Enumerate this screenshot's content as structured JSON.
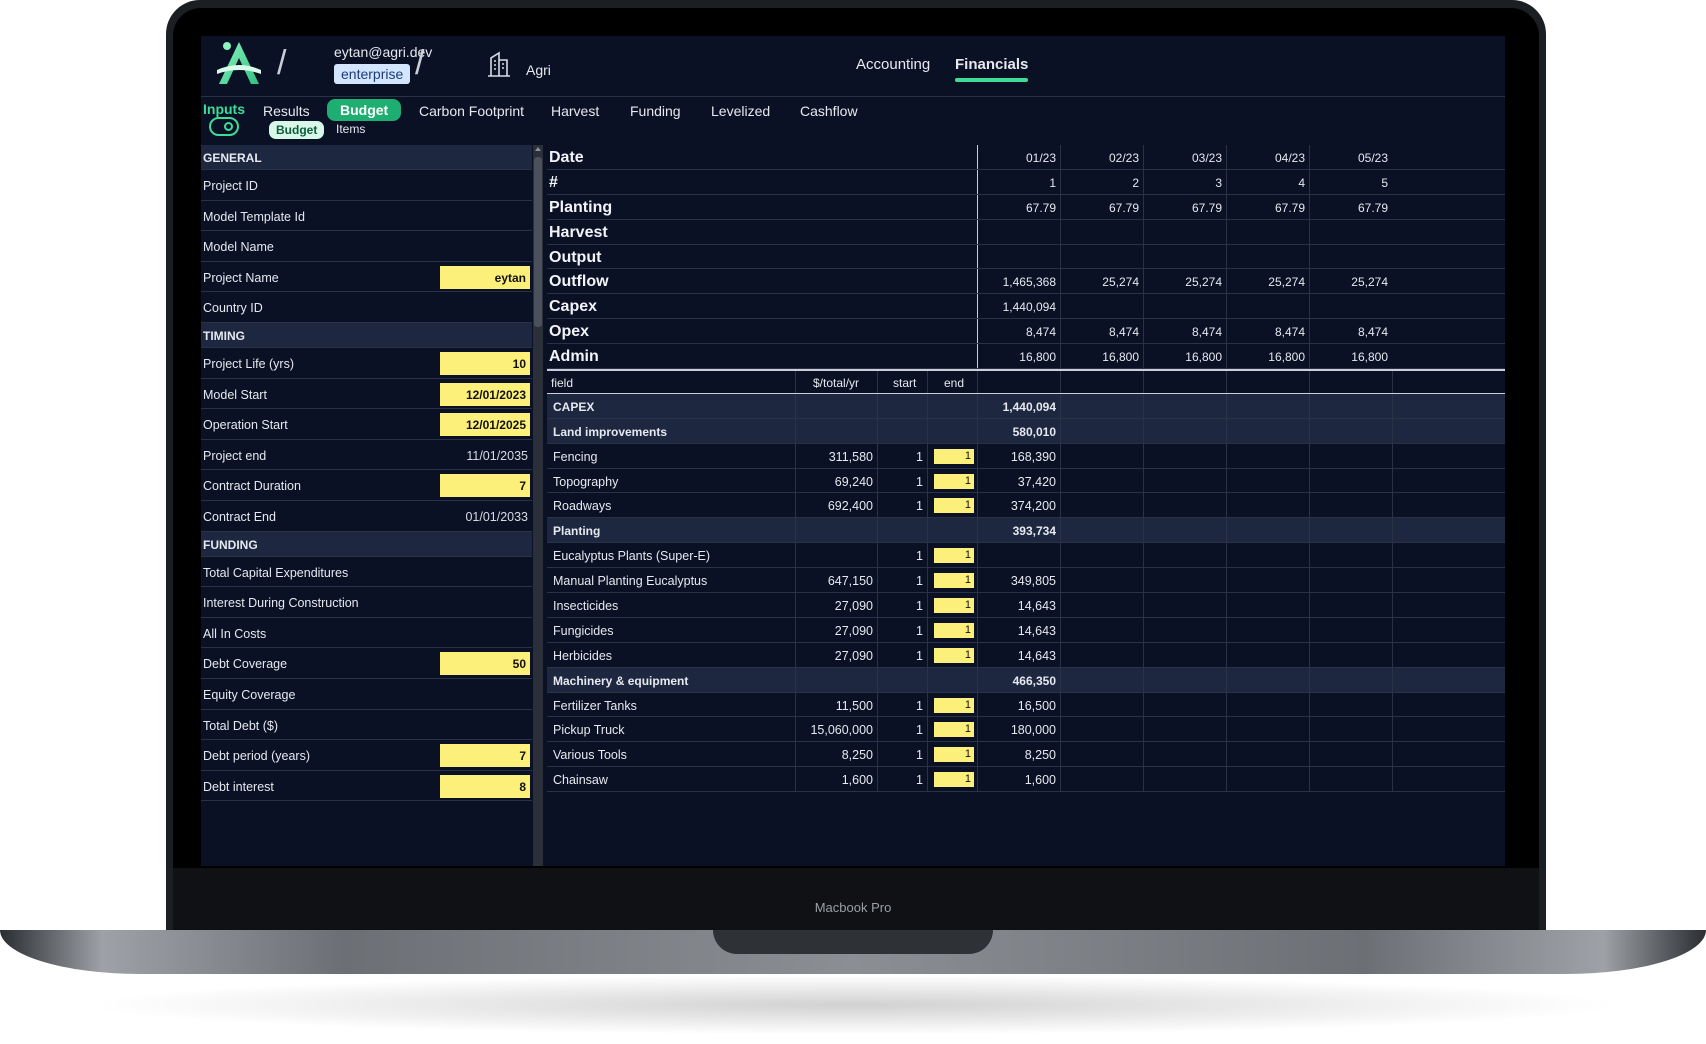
{
  "device": {
    "label": "Macbook Pro"
  },
  "header": {
    "user": "eytan@agri.dev",
    "plan": "enterprise",
    "company": "Agri",
    "tabs": [
      {
        "label": "Accounting"
      },
      {
        "label": "Financials"
      }
    ]
  },
  "nav": {
    "inputs_label": "Inputs",
    "tabs": [
      {
        "label": "Results"
      },
      {
        "label": "Budget"
      },
      {
        "label": "Carbon Footprint"
      },
      {
        "label": "Harvest"
      },
      {
        "label": "Funding"
      },
      {
        "label": "Levelized"
      },
      {
        "label": "Cashflow"
      }
    ],
    "subtabs": [
      {
        "label": "Budget"
      },
      {
        "label": "Items"
      }
    ]
  },
  "left_panel": {
    "general": {
      "title": "GENERAL",
      "rows": [
        {
          "label": "Project ID",
          "value": ""
        },
        {
          "label": "Model Template Id",
          "value": ""
        },
        {
          "label": "Model Name",
          "value": ""
        },
        {
          "label": "Project Name",
          "value": "eytan"
        },
        {
          "label": "Country ID",
          "value": ""
        }
      ]
    },
    "timing": {
      "title": "TIMING",
      "rows": [
        {
          "label": "Project Life (yrs)",
          "value": "10"
        },
        {
          "label": "Model Start",
          "value": "12/01/2023"
        },
        {
          "label": "Operation Start",
          "value": "12/01/2025"
        },
        {
          "label": "Project end",
          "value": "11/01/2035"
        },
        {
          "label": "Contract Duration",
          "value": "7"
        },
        {
          "label": "Contract End",
          "value": "01/01/2033"
        }
      ]
    },
    "funding": {
      "title": "FUNDING",
      "rows": [
        {
          "label": "Total Capital Expenditures",
          "value": ""
        },
        {
          "label": "Interest During Construction",
          "value": ""
        },
        {
          "label": "All In Costs",
          "value": ""
        },
        {
          "label": "Debt Coverage",
          "value": "50"
        },
        {
          "label": "Equity Coverage",
          "value": ""
        },
        {
          "label": "Total Debt ($)",
          "value": ""
        },
        {
          "label": "Debt period (years)",
          "value": "7"
        },
        {
          "label": "Debt interest",
          "value": "8"
        }
      ]
    }
  },
  "summary": {
    "rows": [
      {
        "name": "Date",
        "values": [
          "01/23",
          "02/23",
          "03/23",
          "04/23",
          "05/23"
        ]
      },
      {
        "name": "#",
        "values": [
          "1",
          "2",
          "3",
          "4",
          "5"
        ]
      },
      {
        "name": "Planting",
        "values": [
          "67.79",
          "67.79",
          "67.79",
          "67.79",
          "67.79"
        ]
      },
      {
        "name": "Harvest",
        "values": [
          "",
          "",
          "",
          "",
          ""
        ]
      },
      {
        "name": "Output",
        "values": [
          "",
          "",
          "",
          "",
          ""
        ]
      },
      {
        "name": "Outflow",
        "values": [
          "1,465,368",
          "25,274",
          "25,274",
          "25,274",
          "25,274"
        ]
      },
      {
        "name": "Capex",
        "values": [
          "1,440,094",
          "",
          "",
          "",
          ""
        ]
      },
      {
        "name": "Opex",
        "values": [
          "8,474",
          "8,474",
          "8,474",
          "8,474",
          "8,474"
        ]
      },
      {
        "name": "Admin",
        "values": [
          "16,800",
          "16,800",
          "16,800",
          "16,800",
          "16,800"
        ]
      }
    ]
  },
  "items_table": {
    "headers": {
      "field": "field",
      "rate": "$/total/yr",
      "start": "start",
      "end": "end"
    },
    "rows": [
      {
        "field": "CAPEX",
        "rate": "",
        "start": "",
        "end": "",
        "m1": "1,440,094",
        "cat": true
      },
      {
        "field": "Land improvements",
        "rate": "",
        "start": "",
        "end": "",
        "m1": "580,010",
        "cat": true
      },
      {
        "field": "Fencing",
        "rate": "311,580",
        "start": "1",
        "end": "1",
        "m1": "168,390",
        "cat": false
      },
      {
        "field": "Topography",
        "rate": "69,240",
        "start": "1",
        "end": "1",
        "m1": "37,420",
        "cat": false
      },
      {
        "field": "Roadways",
        "rate": "692,400",
        "start": "1",
        "end": "1",
        "m1": "374,200",
        "cat": false
      },
      {
        "field": "Planting",
        "rate": "",
        "start": "",
        "end": "",
        "m1": "393,734",
        "cat": true
      },
      {
        "field": "Eucalyptus Plants (Super-E)",
        "rate": "",
        "start": "1",
        "end": "1",
        "m1": "",
        "cat": false
      },
      {
        "field": "Manual Planting Eucalyptus",
        "rate": "647,150",
        "start": "1",
        "end": "1",
        "m1": "349,805",
        "cat": false
      },
      {
        "field": "Insecticides",
        "rate": "27,090",
        "start": "1",
        "end": "1",
        "m1": "14,643",
        "cat": false
      },
      {
        "field": "Fungicides",
        "rate": "27,090",
        "start": "1",
        "end": "1",
        "m1": "14,643",
        "cat": false
      },
      {
        "field": "Herbicides",
        "rate": "27,090",
        "start": "1",
        "end": "1",
        "m1": "14,643",
        "cat": false
      },
      {
        "field": "Machinery & equipment",
        "rate": "",
        "start": "",
        "end": "",
        "m1": "466,350",
        "cat": true
      },
      {
        "field": "Fertilizer Tanks",
        "rate": "11,500",
        "start": "1",
        "end": "1",
        "m1": "16,500",
        "cat": false
      },
      {
        "field": "Pickup Truck",
        "rate": "15,060,000",
        "start": "1",
        "end": "1",
        "m1": "180,000",
        "cat": false
      },
      {
        "field": "Various Tools",
        "rate": "8,250",
        "start": "1",
        "end": "1",
        "m1": "8,250",
        "cat": false
      },
      {
        "field": "Chainsaw",
        "rate": "1,600",
        "start": "1",
        "end": "1",
        "m1": "1,600",
        "cat": false
      }
    ]
  },
  "colors": {
    "accent": "#3ddc97",
    "input_bg": "#fdf07a",
    "screen_bg": "#0a1125",
    "section_bg": "#1d2740"
  },
  "icons": {
    "logo": "agri-logo-icon",
    "company": "building-icon",
    "toggle": "toggle-icon"
  }
}
